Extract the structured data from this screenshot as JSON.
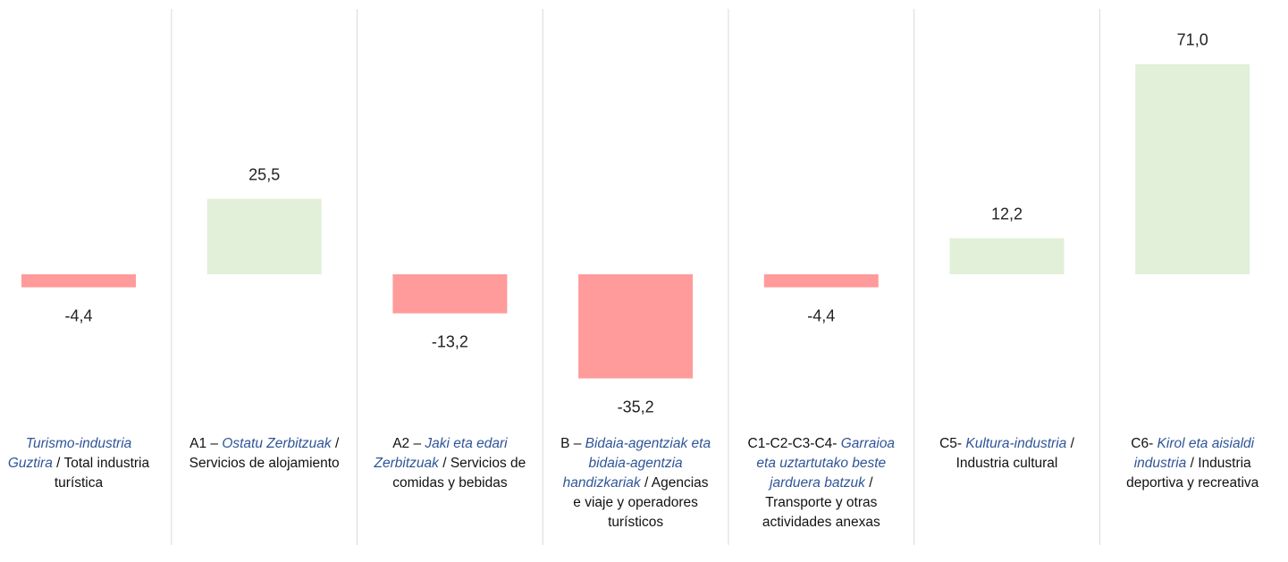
{
  "chart_data": {
    "type": "bar",
    "categories": [
      {
        "code": "",
        "eu": "Turismo-industria Guztira",
        "es": "/ Total industria turística"
      },
      {
        "code": "A1 –",
        "eu": "Ostatu Zerbitzuak",
        "es": "/ Servicios de alojamiento"
      },
      {
        "code": "A2 –",
        "eu": "Jaki eta edari Zerbitzuak",
        "es": "/ Servicios de comidas y bebidas"
      },
      {
        "code": "B –",
        "eu": "Bidaia-agentziak eta bidaia-agentzia handizkariak",
        "es": "/ Agencias e viaje y operadores turísticos"
      },
      {
        "code": "C1-C2-C3-C4-",
        "eu": "Garraioa eta uztartutako beste jarduera batzuk",
        "es": "/ Transporte y otras actividades anexas"
      },
      {
        "code": "C5-",
        "eu": "Kultura-industria",
        "es": "/ Industria cultural"
      },
      {
        "code": "C6-",
        "eu": "Kirol eta aisialdi industria",
        "es": "/ Industria deportiva y recreativa"
      }
    ],
    "values": [
      -4.4,
      25.5,
      -13.2,
      -35.2,
      -4.4,
      12.2,
      71.0
    ],
    "value_labels": [
      "-4,4",
      "25,5",
      "-13,2",
      "-35,2",
      "-4,4",
      "12,2",
      "71,0"
    ],
    "positive_color": "#e2efd9",
    "negative_color": "#ff9b9b"
  }
}
